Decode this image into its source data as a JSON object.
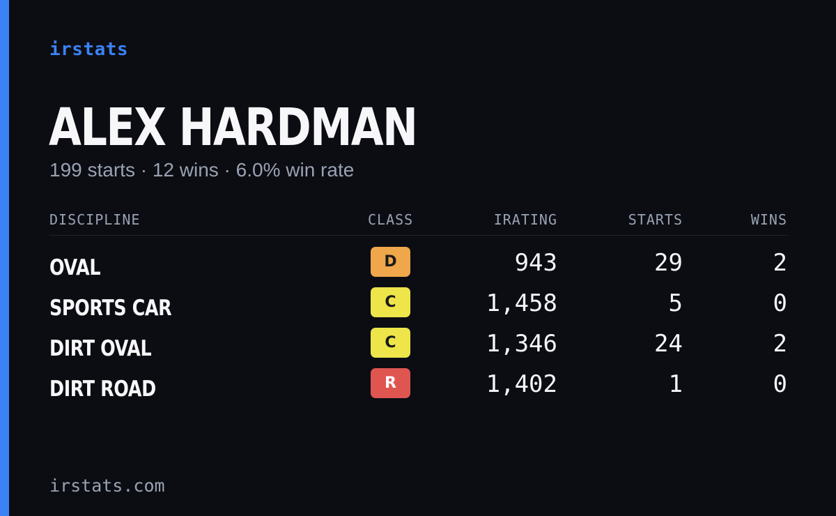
{
  "brand": "irstats",
  "driver": {
    "name": "ALEX HARDMAN",
    "summary": "199 starts · 12 wins · 6.0% win rate"
  },
  "table": {
    "headers": {
      "discipline": "DISCIPLINE",
      "class": "CLASS",
      "irating": "IRATING",
      "starts": "STARTS",
      "wins": "WINS"
    },
    "rows": [
      {
        "discipline": "OVAL",
        "class": "D",
        "class_color": "#f0a64a",
        "irating": "943",
        "starts": "29",
        "wins": "2"
      },
      {
        "discipline": "SPORTS CAR",
        "class": "C",
        "class_color": "#ede54a",
        "irating": "1,458",
        "starts": "5",
        "wins": "0"
      },
      {
        "discipline": "DIRT OVAL",
        "class": "C",
        "class_color": "#ede54a",
        "irating": "1,346",
        "starts": "24",
        "wins": "2"
      },
      {
        "discipline": "DIRT ROAD",
        "class": "R",
        "class_color": "#df5550",
        "irating": "1,402",
        "starts": "1",
        "wins": "0"
      }
    ]
  },
  "footer": {
    "url": "irstats.com"
  },
  "colors": {
    "accent": "#3b82f6",
    "background": "#0b0d13"
  }
}
